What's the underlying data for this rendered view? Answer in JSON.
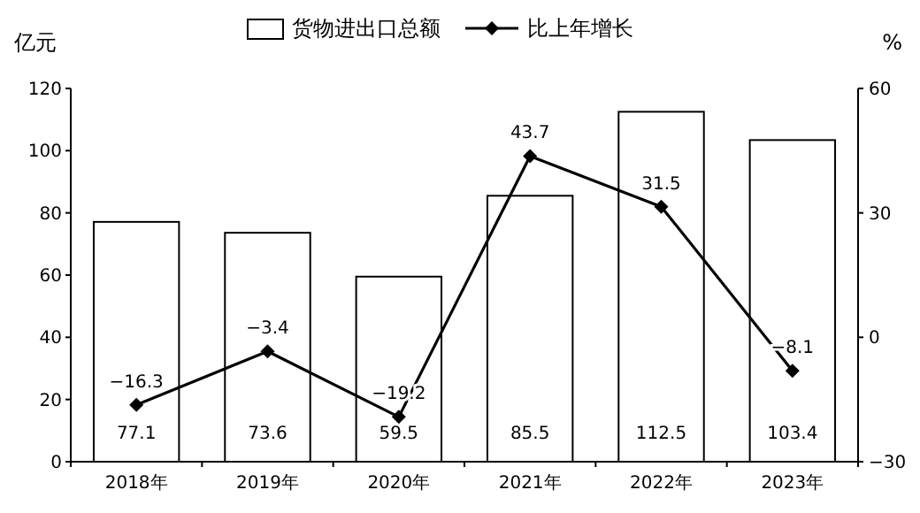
{
  "chart_data": {
    "type": "bar",
    "categories": [
      "2018年",
      "2019年",
      "2020年",
      "2021年",
      "2022年",
      "2023年"
    ],
    "series": [
      {
        "name": "货物进出口总额",
        "color": "#ffffff",
        "values": [
          77.1,
          73.6,
          59.5,
          85.5,
          112.5,
          103.4
        ]
      },
      {
        "name": "比上年增长",
        "type": "line",
        "axis": "y2",
        "color": "#000000",
        "marker": "diamond",
        "values": [
          -16.3,
          -3.4,
          -19.2,
          43.7,
          31.5,
          -8.1
        ]
      }
    ],
    "ylabel": "亿元",
    "y2label": "%",
    "ylim": [
      0,
      120
    ],
    "yticks": [
      0,
      20,
      40,
      60,
      80,
      100,
      120
    ],
    "y2lim": [
      -30,
      60
    ],
    "y2ticks": [
      -30,
      0,
      30,
      60
    ],
    "data_labels": true,
    "legend": "top",
    "grid": false
  }
}
